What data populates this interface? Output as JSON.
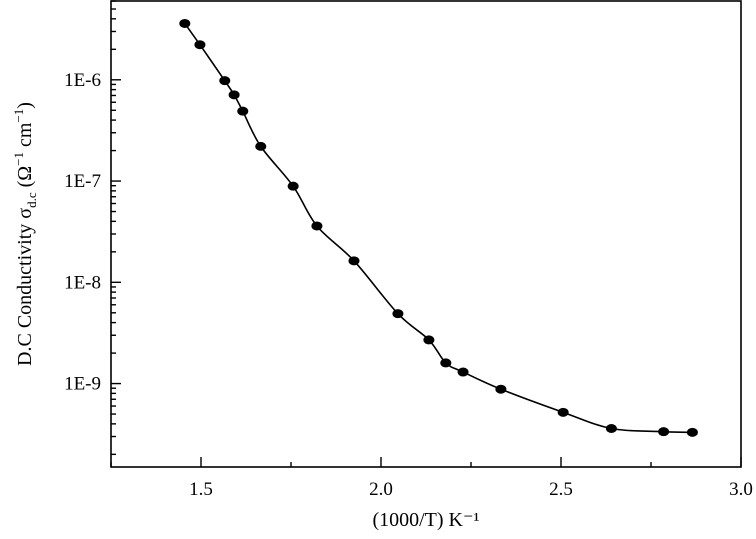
{
  "chart_data": {
    "type": "scatter",
    "title": "",
    "xlabel": "(1000/T) K⁻¹",
    "ylabel": {
      "main": "D.C Conductivity σ",
      "subscript": "d.c",
      "unit_open": " (Ω",
      "unit_sup1": "−1",
      "unit_mid": " cm",
      "unit_sup2": "−1",
      "unit_close": ")"
    },
    "xlim": [
      1.25,
      3.0
    ],
    "ylim": [
      1.5e-10,
      6e-06
    ],
    "yscale": "log",
    "grid": false,
    "legend": "none",
    "x_ticks": [
      1.5,
      2.0,
      2.5,
      3.0
    ],
    "x_tick_labels": [
      "1.5",
      "2.0",
      "2.5",
      "3.0"
    ],
    "y_ticks": [
      1e-09,
      1e-08,
      1e-07,
      1e-06
    ],
    "y_tick_labels": [
      "1E-9",
      "1E-8",
      "1E-7",
      "1E-6"
    ],
    "series": [
      {
        "marker": "filled-ellipse",
        "line": "smooth",
        "color": "#000000",
        "x": [
          1.455,
          1.497,
          1.566,
          1.592,
          1.616,
          1.666,
          1.756,
          1.822,
          1.925,
          2.047,
          2.133,
          2.18,
          2.228,
          2.333,
          2.506,
          2.64,
          2.785,
          2.865
        ],
        "y": [
          3.6e-06,
          2.22e-06,
          9.8e-07,
          7.1e-07,
          4.9e-07,
          2.2e-07,
          8.9e-08,
          3.6e-08,
          1.63e-08,
          4.9e-09,
          2.7e-09,
          1.6e-09,
          1.3e-09,
          8.8e-10,
          5.2e-10,
          3.6e-10,
          3.35e-10,
          3.3e-10
        ]
      }
    ]
  }
}
